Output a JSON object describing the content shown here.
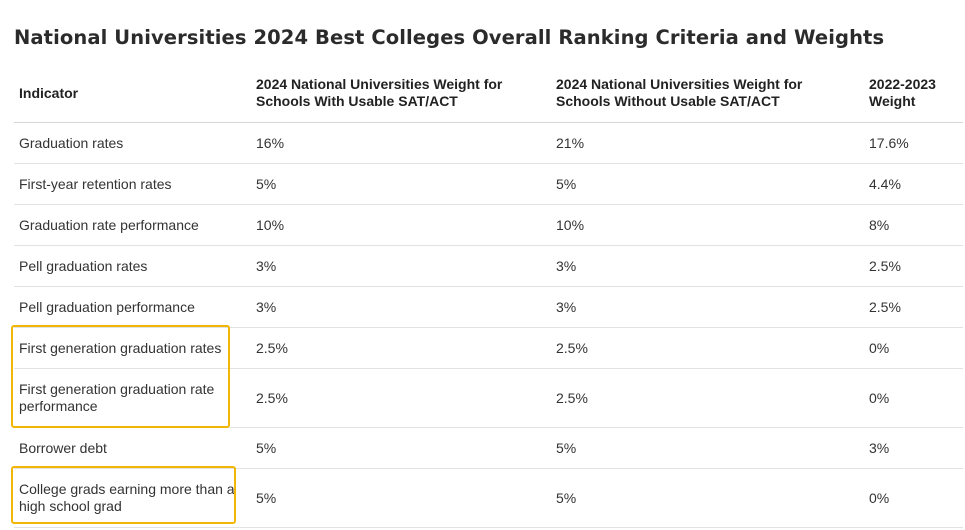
{
  "title": "National Universities 2024 Best Colleges Overall Ranking Criteria and Weights",
  "table": {
    "headers": [
      "Indicator",
      "2024 National Universities Weight for Schools With Usable SAT/ACT",
      "2024 National Universities Weight for Schools Without Usable SAT/ACT",
      "2022-2023 Weight"
    ],
    "rows": [
      [
        "Graduation rates",
        "16%",
        "21%",
        "17.6%"
      ],
      [
        "First-year retention rates",
        "5%",
        "5%",
        "4.4%"
      ],
      [
        "Graduation rate performance",
        "10%",
        "10%",
        "8%"
      ],
      [
        "Pell graduation rates",
        "3%",
        "3%",
        "2.5%"
      ],
      [
        "Pell graduation performance",
        "3%",
        "3%",
        "2.5%"
      ],
      [
        "First generation graduation rates",
        "2.5%",
        "2.5%",
        "0%"
      ],
      [
        "First generation graduation rate performance",
        "2.5%",
        "2.5%",
        "0%"
      ],
      [
        "Borrower debt",
        "5%",
        "5%",
        "3%"
      ],
      [
        "College grads earning more than a high school grad",
        "5%",
        "5%",
        "0%"
      ]
    ]
  },
  "colors": {
    "highlight": "#f2b705"
  }
}
